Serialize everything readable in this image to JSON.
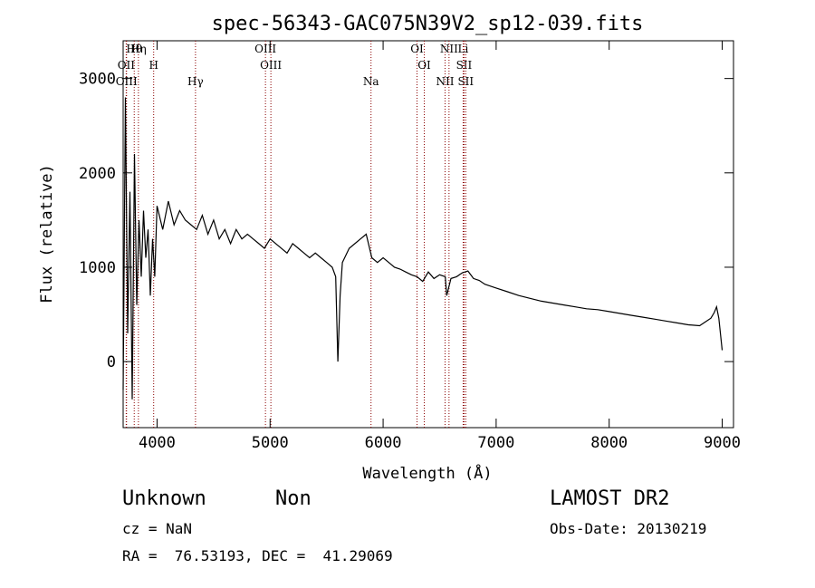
{
  "chart_data": {
    "type": "line",
    "title": "spec-56343-GAC075N39V2_sp12-039.fits",
    "xlabel": "Wavelength (Å)",
    "ylabel": "Flux (relative)",
    "xlim": [
      3700,
      9100
    ],
    "ylim": [
      -700,
      3400
    ],
    "x_ticks": [
      4000,
      5000,
      6000,
      7000,
      8000,
      9000
    ],
    "y_ticks": [
      0,
      1000,
      2000,
      3000
    ],
    "grid": false,
    "series": [
      {
        "x": [
          3700,
          3720,
          3740,
          3760,
          3780,
          3800,
          3820,
          3840,
          3860,
          3880,
          3900,
          3920,
          3940,
          3960,
          3980,
          4000,
          4050,
          4100,
          4150,
          4200,
          4250,
          4300,
          4350,
          4400,
          4450,
          4500,
          4550,
          4600,
          4650,
          4700,
          4750,
          4800,
          4850,
          4900,
          4950,
          5000,
          5050,
          5100,
          5150,
          5200,
          5250,
          5300,
          5350,
          5400,
          5450,
          5500,
          5550,
          5580,
          5600,
          5620,
          5640,
          5660,
          5700,
          5750,
          5800,
          5850,
          5900,
          5950,
          6000,
          6050,
          6100,
          6150,
          6200,
          6250,
          6300,
          6350,
          6400,
          6450,
          6500,
          6550,
          6563,
          6600,
          6650,
          6700,
          6750,
          6800,
          6850,
          6900,
          6950,
          7000,
          7100,
          7200,
          7300,
          7400,
          7500,
          7600,
          7700,
          7800,
          7900,
          8000,
          8100,
          8200,
          8300,
          8400,
          8500,
          8600,
          8700,
          8800,
          8850,
          8900,
          8930,
          8950,
          8970,
          9000
        ],
        "y": [
          -300,
          2800,
          300,
          1800,
          -400,
          2200,
          600,
          1500,
          900,
          1600,
          1100,
          1400,
          700,
          1300,
          900,
          1650,
          1400,
          1700,
          1450,
          1600,
          1500,
          1450,
          1400,
          1550,
          1350,
          1500,
          1300,
          1400,
          1250,
          1400,
          1300,
          1350,
          1300,
          1250,
          1200,
          1300,
          1250,
          1200,
          1150,
          1250,
          1200,
          1150,
          1100,
          1150,
          1100,
          1050,
          1000,
          900,
          0,
          700,
          1050,
          1100,
          1200,
          1250,
          1300,
          1350,
          1100,
          1050,
          1100,
          1050,
          1000,
          980,
          950,
          920,
          900,
          850,
          950,
          880,
          920,
          900,
          700,
          880,
          900,
          940,
          960,
          880,
          860,
          820,
          800,
          780,
          740,
          700,
          670,
          640,
          620,
          600,
          580,
          560,
          550,
          530,
          510,
          490,
          470,
          450,
          430,
          410,
          390,
          380,
          420,
          460,
          520,
          580,
          460,
          120
        ]
      }
    ],
    "spectral_lines": [
      {
        "label": "Hθ",
        "x": 3798
      },
      {
        "label": "OII",
        "x": 3727
      },
      {
        "label": "OIII",
        "x": 3730
      },
      {
        "label": "Hη",
        "x": 3835
      },
      {
        "label": "H",
        "x": 3970
      },
      {
        "label": "Hγ",
        "x": 4340
      },
      {
        "label": "OIII",
        "x": 4959
      },
      {
        "label": "OIII",
        "x": 5007
      },
      {
        "label": "Na",
        "x": 5893
      },
      {
        "label": "OI",
        "x": 6300
      },
      {
        "label": "OI",
        "x": 6364
      },
      {
        "label": "NII",
        "x": 6548
      },
      {
        "label": "NII",
        "x": 6583
      },
      {
        "label": "SII",
        "x": 6716
      },
      {
        "label": "SII",
        "x": 6731
      },
      {
        "label": "Li",
        "x": 6708
      }
    ]
  },
  "info": {
    "class_label": "Unknown",
    "subclass_label": "Non",
    "survey": "LAMOST DR2",
    "cz": "cz = NaN",
    "obs_date": "Obs-Date: 20130219",
    "coords": "RA =  76.53193, DEC =  41.29069"
  },
  "colors": {
    "spectrum": "#000000",
    "line_marker": "#8b0000",
    "axes": "#000000"
  }
}
